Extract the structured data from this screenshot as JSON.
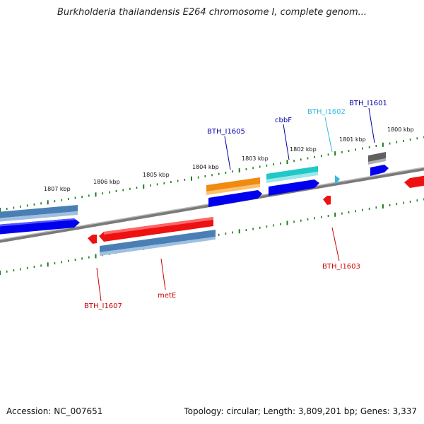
{
  "title": "Burkholderia thailandensis E264 chromosome I, complete genom...",
  "footer": {
    "accession": "Accession: NC_007651",
    "stats": "Topology: circular; Length: 3,809,201 bp; Genes: 3,337"
  },
  "colors": {
    "backbone": "#808080",
    "tick_marks": "#1e7a1e",
    "forward_blue": "#0000ee",
    "steel_blue": "#4a7fb5",
    "orange": "#f08a10",
    "cyan": "#20c8c8",
    "red": "#ee1111",
    "gray_gene": "#606060",
    "label_navy": "#0000aa",
    "label_cyan": "#33bbdd",
    "label_red": "#cc0000"
  },
  "kbp_ticks": [
    "1807 kbp",
    "1806 kbp",
    "1805 kbp",
    "1804 kbp",
    "1803 kbp",
    "1802 kbp",
    "1801 kbp",
    "1800 kbp"
  ],
  "gene_labels": {
    "bth_i1605": "BTH_I1605",
    "cbbf": "cbbF",
    "bth_i1602": "BTH_I1602",
    "bth_i1601": "BTH_I1601",
    "bth_i1603": "BTH_I1603",
    "mete": "metE",
    "bth_i1607": "BTH_I1607"
  }
}
